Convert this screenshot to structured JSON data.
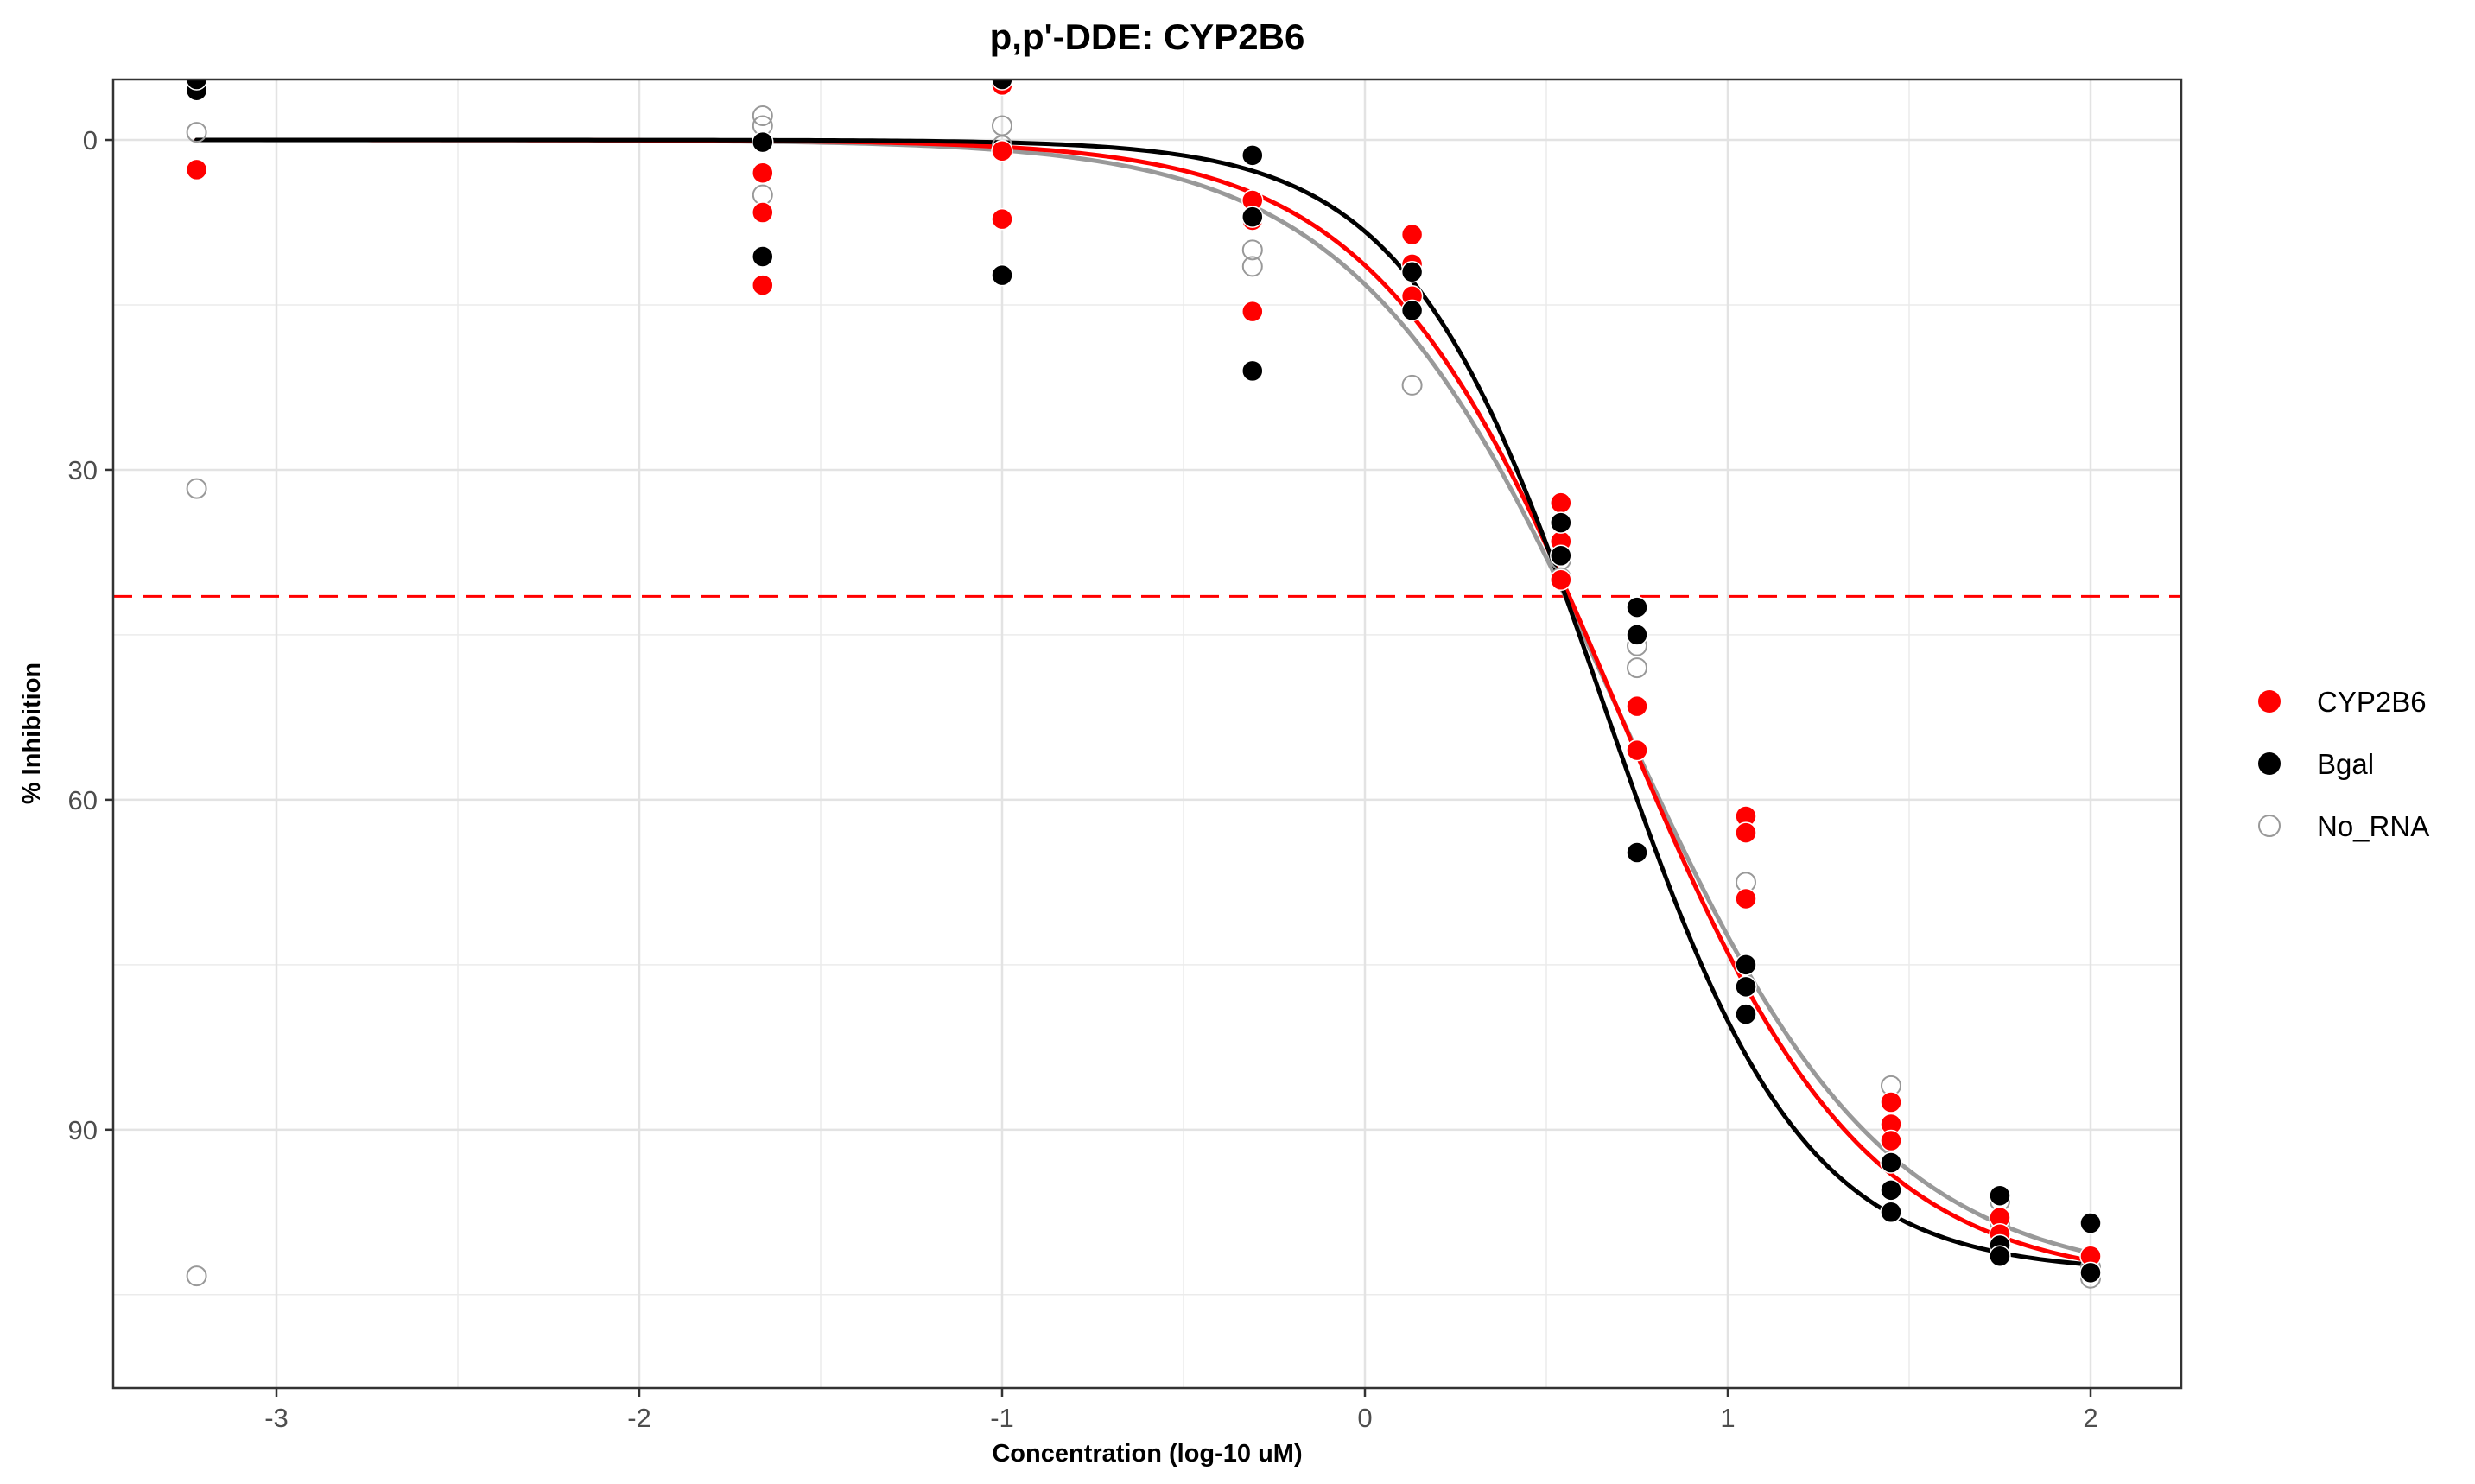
{
  "chart_data": {
    "type": "scatter",
    "title": "p,p'-DDE: CYP2B6",
    "xlabel": "Concentration (log-10 uM)",
    "ylabel": "% Inhibition",
    "xlim": [
      -3.45,
      2.25
    ],
    "ylim": [
      -5.5,
      113.5
    ],
    "y_reversed": true,
    "x_ticks": [
      -3,
      -2,
      -1,
      0,
      1,
      2
    ],
    "x_tick_labels": [
      "-3",
      "-2",
      "-1",
      "0",
      "1",
      "2"
    ],
    "y_ticks": [
      0,
      30,
      60,
      90
    ],
    "y_tick_labels": [
      "0",
      "30",
      "60",
      "90"
    ],
    "grid": true,
    "legend_position": "right",
    "reference_line": {
      "y": 41.5,
      "color": "#ff0000",
      "style": "dashed"
    },
    "series": [
      {
        "name": "CYP2B6",
        "color": "#ff0000",
        "marker": "filled",
        "points": [
          [
            -3.22,
            2.7
          ],
          [
            -1.66,
            3.0
          ],
          [
            -1.66,
            6.6
          ],
          [
            -1.66,
            13.2
          ],
          [
            -1.0,
            -5.0
          ],
          [
            -1.0,
            1.0
          ],
          [
            -1.0,
            7.2
          ],
          [
            -0.31,
            5.5
          ],
          [
            -0.31,
            7.3
          ],
          [
            -0.31,
            15.6
          ],
          [
            0.13,
            8.6
          ],
          [
            0.13,
            11.3
          ],
          [
            0.13,
            14.2
          ],
          [
            0.54,
            33.0
          ],
          [
            0.54,
            36.5
          ],
          [
            0.54,
            40.0
          ],
          [
            0.75,
            51.5
          ],
          [
            0.75,
            55.5
          ],
          [
            1.05,
            61.5
          ],
          [
            1.05,
            63.0
          ],
          [
            1.05,
            69.0
          ],
          [
            1.45,
            87.5
          ],
          [
            1.45,
            89.5
          ],
          [
            1.45,
            91.0
          ],
          [
            1.75,
            98.0
          ],
          [
            1.75,
            99.5
          ],
          [
            2.0,
            101.5
          ]
        ],
        "curve": {
          "bottom": 0,
          "top": 104,
          "log_ic50": 0.7,
          "hill": 1.3
        }
      },
      {
        "name": "Bgal",
        "color": "#000000",
        "marker": "filled",
        "points": [
          [
            -3.22,
            -4.5
          ],
          [
            -3.22,
            -5.5
          ],
          [
            -1.66,
            0.2
          ],
          [
            -1.66,
            10.6
          ],
          [
            -1.0,
            -5.5
          ],
          [
            -1.0,
            12.3
          ],
          [
            -0.31,
            1.4
          ],
          [
            -0.31,
            7.0
          ],
          [
            -0.31,
            21.0
          ],
          [
            0.13,
            12.0
          ],
          [
            0.13,
            15.5
          ],
          [
            0.54,
            34.8
          ],
          [
            0.54,
            37.8
          ],
          [
            0.75,
            42.5
          ],
          [
            0.75,
            45.0
          ],
          [
            0.75,
            64.8
          ],
          [
            1.05,
            75.0
          ],
          [
            1.05,
            77.0
          ],
          [
            1.05,
            79.5
          ],
          [
            1.45,
            93.0
          ],
          [
            1.45,
            95.5
          ],
          [
            1.45,
            97.5
          ],
          [
            1.75,
            96.0
          ],
          [
            1.75,
            100.5
          ],
          [
            1.75,
            101.5
          ],
          [
            2.0,
            98.5
          ],
          [
            2.0,
            103.0
          ]
        ],
        "curve": {
          "bottom": 0,
          "top": 103,
          "log_ic50": 0.66,
          "hill": 1.6
        }
      },
      {
        "name": "No_RNA",
        "color": "#999999",
        "marker": "open",
        "points": [
          [
            -3.22,
            -0.7
          ],
          [
            -3.22,
            31.7
          ],
          [
            -3.22,
            103.3
          ],
          [
            -1.66,
            -2.2
          ],
          [
            -1.66,
            -1.3
          ],
          [
            -1.66,
            5.0
          ],
          [
            -1.0,
            -1.3
          ],
          [
            -1.0,
            0.5
          ],
          [
            -0.31,
            10.0
          ],
          [
            -0.31,
            11.5
          ],
          [
            0.13,
            22.3
          ],
          [
            0.54,
            38.2
          ],
          [
            0.54,
            39.8
          ],
          [
            0.75,
            46.0
          ],
          [
            0.75,
            48.0
          ],
          [
            1.05,
            67.5
          ],
          [
            1.45,
            86.0
          ],
          [
            1.45,
            89.5
          ],
          [
            1.75,
            96.5
          ],
          [
            1.75,
            98.5
          ],
          [
            2.0,
            102.5
          ],
          [
            2.0,
            103.5
          ]
        ],
        "curve": {
          "bottom": 0,
          "top": 104,
          "log_ic50": 0.7,
          "hill": 1.2
        }
      }
    ]
  }
}
